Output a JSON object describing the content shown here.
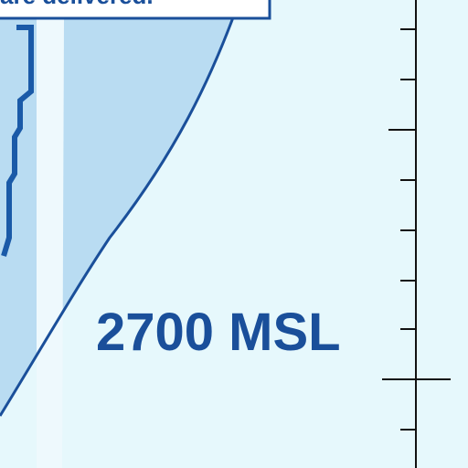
{
  "labels": {
    "top_note": "are delivered.",
    "altitude": "2700 MSL"
  }
}
